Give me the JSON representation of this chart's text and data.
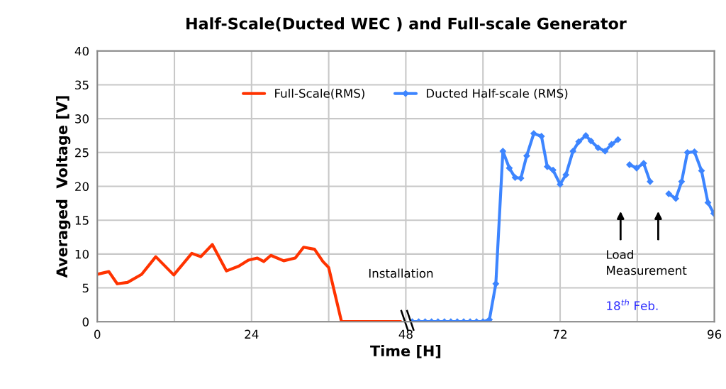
{
  "chart_data": {
    "type": "line",
    "title": "Half-Scale(Ducted WEC ) and Full-scale Generator",
    "xlabel": "Time [H]",
    "ylabel": "Averaged  Voltage [V]",
    "xlim": [
      0,
      96
    ],
    "ylim": [
      0,
      40
    ],
    "xticks": [
      0,
      {
        "value": 12,
        "label": null
      },
      24,
      {
        "value": 36,
        "label": null
      },
      48,
      {
        "value": 60,
        "label": null
      },
      72,
      {
        "value": 84,
        "label": null
      },
      96
    ],
    "yticks": [
      0,
      5,
      10,
      15,
      20,
      25,
      30,
      35,
      40
    ],
    "grid": true,
    "legend": "top",
    "line_style": "solid",
    "series": [
      {
        "name": "Full-Scale(RMS)",
        "color": "#ff3300",
        "marker": "none",
        "x": [
          0,
          1.8,
          3.1,
          4.7,
          6.9,
          9.1,
          11.9,
          14.7,
          16.1,
          17.9,
          20.1,
          22.0,
          23.5,
          24.9,
          25.9,
          27.0,
          29.0,
          30.8,
          32.1,
          33.8,
          35.1,
          36.0,
          38.0,
          40,
          42,
          44,
          46,
          47.2
        ],
        "values": [
          7.0,
          7.4,
          5.6,
          5.8,
          7.0,
          9.6,
          6.9,
          10.1,
          9.6,
          11.4,
          7.5,
          8.2,
          9.1,
          9.4,
          8.9,
          9.8,
          9.0,
          9.4,
          11.0,
          10.7,
          8.9,
          8.0,
          0,
          0,
          0,
          0,
          0,
          0
        ]
      },
      {
        "name": "Ducted Half-scale (RMS)",
        "color": "#3d85ff",
        "marker": "diamond",
        "x": [
          49,
          50,
          51,
          52,
          53,
          54,
          55,
          56,
          57,
          58,
          59,
          60,
          61,
          62.0,
          63.1,
          64.1,
          65.0,
          65.9,
          66.8,
          67.9,
          69.1,
          70.0,
          70.9,
          72.0,
          72.9,
          74.0,
          74.9,
          76.0,
          76.8,
          77.9,
          79.0,
          80.0,
          81.0,
          82.0,
          82.8,
          83.9,
          85.0,
          86.0,
          87.5,
          88.9,
          90.0,
          90.9,
          91.8,
          92.9,
          94.0,
          95.0,
          95.9
        ],
        "values": [
          0,
          0,
          0,
          0,
          0,
          0,
          0,
          0,
          0,
          0,
          0,
          0,
          0.3,
          5.6,
          25.2,
          22.7,
          21.3,
          21.2,
          24.5,
          27.8,
          27.4,
          22.9,
          22.4,
          20.3,
          21.7,
          25.2,
          26.6,
          27.5,
          26.7,
          25.7,
          25.2,
          26.2,
          26.9,
          null,
          23.2,
          22.7,
          23.4,
          20.7,
          null,
          18.9,
          18.2,
          20.7,
          25.0,
          25.1,
          22.3,
          17.6,
          16.0
        ]
      }
    ],
    "annotations": [
      "Load\nMeasurement",
      "Installation",
      "18$^{th}$ Feb."
    ]
  }
}
